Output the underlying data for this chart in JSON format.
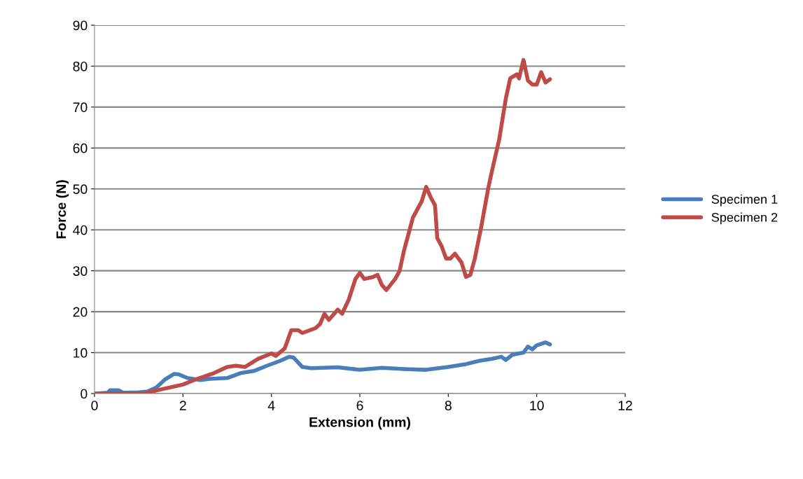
{
  "chart_data": {
    "type": "line",
    "xlabel": "Extension (mm)",
    "ylabel": "Force (N)",
    "xlim": [
      0,
      12
    ],
    "xticks": [
      0,
      2,
      4,
      6,
      8,
      10,
      12
    ],
    "ylim": [
      0,
      90
    ],
    "yticks": [
      0,
      10,
      20,
      30,
      40,
      50,
      60,
      70,
      80,
      90
    ],
    "grid": "y",
    "legend": "right",
    "marker": "none",
    "line_style": "solid",
    "series": [
      {
        "name": "Specimen 1",
        "color": "#4a7ebb",
        "x": [
          0,
          0.3,
          0.35,
          0.55,
          0.65,
          1,
          1.2,
          1.4,
          1.6,
          1.8,
          1.9,
          2.1,
          2.4,
          2.6,
          3.0,
          3.3,
          3.6,
          3.9,
          4.2,
          4.4,
          4.5,
          4.7,
          4.9,
          5.5,
          6.0,
          6.5,
          7.0,
          7.5,
          8.0,
          8.4,
          8.7,
          9.0,
          9.2,
          9.3,
          9.45,
          9.7,
          9.8,
          9.9,
          10.0,
          10.2,
          10.3
        ],
        "values": [
          0,
          0.2,
          0.8,
          0.8,
          0.2,
          0.3,
          0.5,
          1.5,
          3.5,
          4.8,
          4.7,
          3.8,
          3.3,
          3.6,
          3.8,
          5,
          5.5,
          6.8,
          8,
          9,
          8.8,
          6.5,
          6.2,
          6.4,
          5.8,
          6.3,
          6.0,
          5.8,
          6.5,
          7.2,
          8,
          8.5,
          9,
          8.2,
          9.5,
          10,
          11.5,
          10.8,
          11.8,
          12.5,
          12
        ]
      },
      {
        "name": "Specimen 2",
        "color": "#be4b48",
        "x": [
          0,
          1.1,
          1.5,
          2,
          2.3,
          2.7,
          3,
          3.2,
          3.4,
          3.7,
          4,
          4.1,
          4.3,
          4.45,
          4.6,
          4.7,
          5.0,
          5.1,
          5.2,
          5.3,
          5.5,
          5.6,
          5.75,
          5.9,
          6.0,
          6.1,
          6.3,
          6.4,
          6.5,
          6.6,
          6.8,
          6.9,
          7.0,
          7.2,
          7.4,
          7.5,
          7.6,
          7.7,
          7.75,
          7.85,
          7.95,
          8.05,
          8.15,
          8.3,
          8.4,
          8.5,
          8.6,
          8.75,
          8.9,
          9.0,
          9.15,
          9.3,
          9.4,
          9.55,
          9.6,
          9.7,
          9.8,
          9.9,
          10.0,
          10.1,
          10.2,
          10.3
        ],
        "values": [
          0,
          0,
          1,
          2.2,
          3.5,
          5,
          6.5,
          6.8,
          6.5,
          8.5,
          9.8,
          9.2,
          11,
          15.5,
          15.5,
          14.8,
          16,
          17,
          19.5,
          18,
          20.5,
          19.5,
          23,
          28,
          29.5,
          28,
          28.5,
          29,
          26.5,
          25.3,
          28,
          30,
          35,
          43,
          47,
          50.5,
          48,
          46,
          38,
          36,
          33,
          33,
          34.2,
          32,
          28.5,
          29,
          33,
          41,
          50,
          55,
          62,
          72,
          77,
          78,
          77,
          81.5,
          76.5,
          75.5,
          75.5,
          78.5,
          76,
          76.8
        ]
      }
    ]
  }
}
